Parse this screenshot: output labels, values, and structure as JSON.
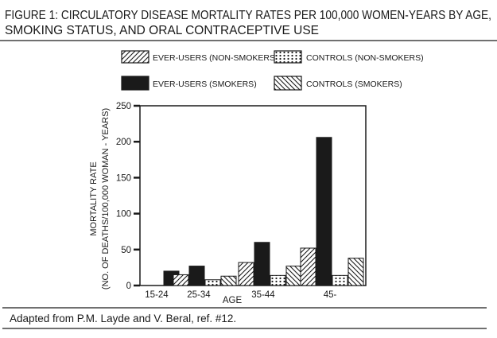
{
  "figure": {
    "title_line1": "FIGURE 1: CIRCULATORY DISEASE MORTALITY RATES PER 100,000 WOMEN-YEARS BY AGE,",
    "title_line2": "SMOKING STATUS, AND ORAL CONTRACEPTIVE USE",
    "caption": "Adapted from P.M. Layde and V. Beral, ref. #12."
  },
  "chart_data": {
    "type": "bar",
    "title": "FIGURE 1: CIRCULATORY DISEASE MORTALITY RATES PER 100,000 WOMEN-YEARS BY AGE, SMOKING STATUS, AND ORAL CONTRACEPTIVE USE",
    "xlabel": "AGE",
    "ylabel_line1": "MORTALITY RATE",
    "ylabel_line2": "(NO. OF DEATHS/100,000 WOMAN - YEARS)",
    "ylim": [
      0,
      250
    ],
    "yticks": [
      0,
      50,
      100,
      150,
      200,
      250
    ],
    "grid": false,
    "legend_position": "top",
    "categories": [
      "15-24",
      "25-34",
      "35-44",
      "45-"
    ],
    "series": [
      {
        "name": "EVER-USERS (NON-SMOKERS)",
        "pattern": "hatch-forward",
        "values": [
          null,
          15,
          32,
          52
        ]
      },
      {
        "name": "EVER-USERS (SMOKERS)",
        "pattern": "solid",
        "values": [
          20,
          27,
          60,
          206
        ]
      },
      {
        "name": "CONTROLS (NON-SMOKERS)",
        "pattern": "dots",
        "values": [
          null,
          8,
          14,
          14
        ]
      },
      {
        "name": "CONTROLS (SMOKERS)",
        "pattern": "hatch-back",
        "values": [
          null,
          13,
          27,
          38
        ]
      }
    ],
    "colors": {
      "ink": "#1a1a1a",
      "paper": "#ffffff"
    }
  }
}
